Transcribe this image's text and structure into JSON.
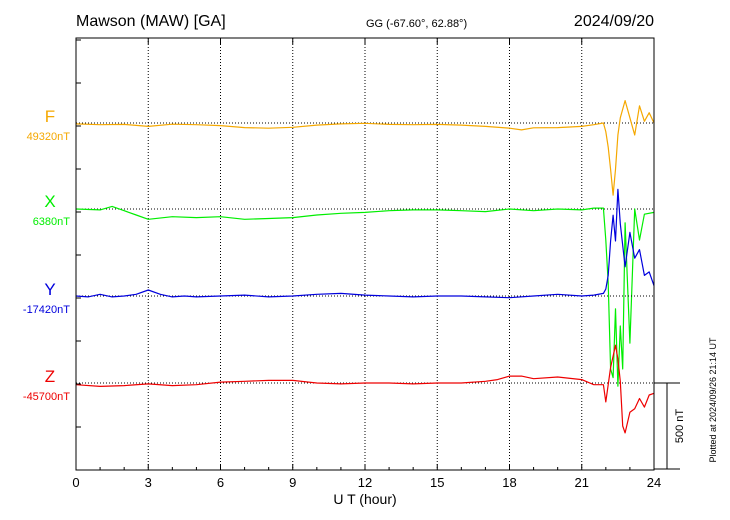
{
  "header": {
    "station": "Mawson (MAW)  [GA]",
    "coords": "GG (-67.60°,  62.88°)",
    "date": "2024/09/20"
  },
  "side_note": "Plotted at 2024/09/26 21:14 UT",
  "scale_label": "500 nT",
  "chart_data": {
    "type": "line",
    "xlabel": "U T (hour)",
    "xlim": [
      0,
      24
    ],
    "xticks": [
      "0",
      "3",
      "6",
      "9",
      "12",
      "15",
      "18",
      "21",
      "24"
    ],
    "grid": true,
    "scale_bar_nT": 500,
    "series": [
      {
        "name": "F",
        "baseline": "49320nT",
        "baseline_value": 49320,
        "color": "#f5a800",
        "x": [
          0,
          1,
          2,
          3,
          4,
          5,
          6,
          7,
          8,
          9,
          10,
          11,
          12,
          13,
          14,
          15,
          16,
          17,
          18,
          18.5,
          19,
          20,
          21,
          21.5,
          21.9,
          22.0,
          22.1,
          22.2,
          22.3,
          22.4,
          22.5,
          22.6,
          22.8,
          23.0,
          23.2,
          23.4,
          23.6,
          23.8,
          24
        ],
        "y": [
          49315,
          49310,
          49312,
          49300,
          49313,
          49310,
          49305,
          49293,
          49290,
          49295,
          49308,
          49315,
          49318,
          49312,
          49310,
          49312,
          49308,
          49300,
          49290,
          49280,
          49292,
          49293,
          49300,
          49310,
          49320,
          49270,
          49180,
          49050,
          48900,
          49050,
          49250,
          49350,
          49450,
          49350,
          49250,
          49420,
          49330,
          49380,
          49320
        ]
      },
      {
        "name": "X",
        "baseline": "6380nT",
        "baseline_value": 6380,
        "color": "#00ee00",
        "x": [
          0,
          1,
          1.5,
          2,
          2.5,
          3,
          4,
          5,
          6,
          7,
          8,
          9,
          10,
          11,
          12,
          13,
          14,
          15,
          16,
          17,
          18,
          19,
          20,
          21,
          21.5,
          21.9,
          22.0,
          22.1,
          22.2,
          22.3,
          22.4,
          22.5,
          22.6,
          22.7,
          22.8,
          23.0,
          23.2,
          23.4,
          23.6,
          24
        ],
        "y": [
          6380,
          6375,
          6395,
          6370,
          6345,
          6320,
          6335,
          6330,
          6335,
          6320,
          6325,
          6330,
          6345,
          6355,
          6360,
          6370,
          6375,
          6375,
          6370,
          6365,
          6380,
          6370,
          6380,
          6375,
          6385,
          6385,
          6200,
          5950,
          5450,
          5400,
          5800,
          5350,
          5700,
          5450,
          6300,
          5600,
          6380,
          6200,
          6350,
          6360
        ]
      },
      {
        "name": "Y",
        "baseline": "-17420nT",
        "baseline_value": -17420,
        "color": "#0000dd",
        "x": [
          0,
          0.5,
          1,
          1.5,
          2,
          2.5,
          3,
          3.5,
          4,
          4.5,
          5,
          6,
          7,
          8,
          9,
          10,
          11,
          12,
          13,
          14,
          15,
          16,
          17,
          18,
          19,
          20,
          21,
          21.5,
          21.9,
          22.0,
          22.1,
          22.2,
          22.3,
          22.4,
          22.5,
          22.6,
          22.8,
          23.0,
          23.2,
          23.4,
          23.6,
          23.8,
          24
        ],
        "y": [
          -17420,
          -17425,
          -17410,
          -17425,
          -17420,
          -17410,
          -17385,
          -17410,
          -17425,
          -17420,
          -17425,
          -17420,
          -17415,
          -17425,
          -17420,
          -17410,
          -17405,
          -17415,
          -17420,
          -17425,
          -17420,
          -17420,
          -17425,
          -17430,
          -17420,
          -17410,
          -17420,
          -17415,
          -17405,
          -17380,
          -17300,
          -17100,
          -16950,
          -17100,
          -16800,
          -17000,
          -17250,
          -17050,
          -17200,
          -17150,
          -17300,
          -17280,
          -17360
        ]
      },
      {
        "name": "Z",
        "baseline": "-45700nT",
        "baseline_value": -45700,
        "color": "#ee0000",
        "x": [
          0,
          1,
          2,
          3,
          4,
          5,
          6,
          7,
          8,
          9,
          10,
          11,
          12,
          13,
          14,
          15,
          16,
          17,
          17.5,
          18,
          18.5,
          19,
          20,
          21,
          21.5,
          21.9,
          22.0,
          22.2,
          22.4,
          22.5,
          22.6,
          22.7,
          22.8,
          23.0,
          23.2,
          23.4,
          23.6,
          23.8,
          24
        ],
        "y": [
          -45710,
          -45720,
          -45715,
          -45705,
          -45715,
          -45710,
          -45695,
          -45690,
          -45685,
          -45685,
          -45700,
          -45705,
          -45700,
          -45700,
          -45705,
          -45700,
          -45700,
          -45690,
          -45680,
          -45660,
          -45660,
          -45675,
          -45665,
          -45680,
          -45710,
          -45710,
          -45810,
          -45610,
          -45480,
          -45560,
          -45690,
          -45950,
          -45990,
          -45870,
          -45850,
          -45790,
          -45840,
          -45770,
          -45760
        ]
      }
    ]
  }
}
